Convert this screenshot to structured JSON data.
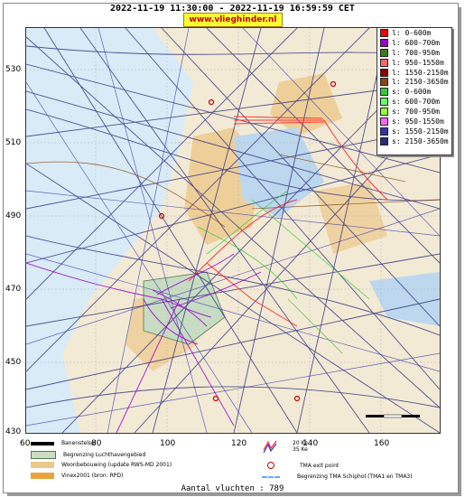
{
  "header": {
    "time_range": "2022-11-19 11:30:00 - 2022-11-19 16:59:59 CET",
    "site": "www.vlieghinder.nl"
  },
  "axes": {
    "y_ticks": [
      "530",
      "510",
      "490",
      "470",
      "450",
      "430"
    ],
    "x_ticks": [
      "60",
      "80",
      "100",
      "120",
      "140",
      "160"
    ]
  },
  "legend": {
    "items": [
      {
        "label": "l: 0-600m",
        "color": "#ff0000"
      },
      {
        "label": "l: 600-700m",
        "color": "#9900cc"
      },
      {
        "label": "l: 700-950m",
        "color": "#3a7d1a"
      },
      {
        "label": "l: 950-1550m",
        "color": "#ff6666"
      },
      {
        "label": "l: 1550-2150m",
        "color": "#8b0000"
      },
      {
        "label": "l: 2150-3650m",
        "color": "#8b4513"
      },
      {
        "label": "s: 0-600m",
        "color": "#33cc33"
      },
      {
        "label": "s: 600-700m",
        "color": "#66ff66"
      },
      {
        "label": "s: 700-950m",
        "color": "#99ff33"
      },
      {
        "label": "s: 950-1550m",
        "color": "#ff66ff"
      },
      {
        "label": "s: 1550-2150m",
        "color": "#3333aa"
      },
      {
        "label": "s: 2150-3650m",
        "color": "#2b2b7a"
      }
    ]
  },
  "map_legend": {
    "runway": "Banenstelsel",
    "airport_boundary": "Begrenzing Luchthavengebied",
    "housing": "Woonbebouwing (update RWS-MD 2001)",
    "vinex": "Vinex2001 (bron: RPD)",
    "kw20": "20 Ke",
    "kw35": "35 Ke",
    "tma_exit": "TMA exit point",
    "tma_boundary": "Begrenzing TMA Schiphol  (TMA1 en TMA3)"
  },
  "footer": {
    "count": "Aantal vluchten : 789"
  }
}
